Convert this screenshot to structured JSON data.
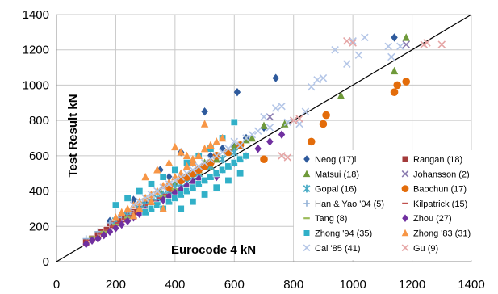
{
  "chart_data": {
    "type": "scatter",
    "title": "",
    "xlabel": "Eurocode 4   kN",
    "ylabel": "Test  Result  kN",
    "xlim": [
      0,
      1400
    ],
    "ylim": [
      0,
      1400
    ],
    "x_ticks": [
      "0",
      "200",
      "400",
      "600",
      "800",
      "1000",
      "1200",
      "1400"
    ],
    "y_ticks": [
      "0",
      "200",
      "400",
      "600",
      "800",
      "1000",
      "1200",
      "1400"
    ],
    "grid": true,
    "legend_position": "bottom-right",
    "reference_line": {
      "x": [
        0,
        1400
      ],
      "y": [
        0,
        1400
      ],
      "color": "#000000"
    },
    "series": [
      {
        "name": "Neog (17)i",
        "marker": "diamond",
        "color": "#2e5a9c",
        "points": [
          [
            500,
            850
          ],
          [
            610,
            960
          ],
          [
            740,
            1040
          ],
          [
            1140,
            1270
          ],
          [
            420,
            620
          ],
          [
            350,
            520
          ],
          [
            260,
            350
          ],
          [
            380,
            480
          ],
          [
            560,
            640
          ],
          [
            640,
            700
          ],
          [
            220,
            250
          ],
          [
            300,
            330
          ],
          [
            460,
            560
          ],
          [
            520,
            600
          ],
          [
            180,
            230
          ],
          [
            600,
            650
          ],
          [
            700,
            760
          ]
        ]
      },
      {
        "name": "Rangan (18)",
        "marker": "square",
        "color": "#a33a3a",
        "points": [
          [
            100,
            110
          ],
          [
            120,
            130
          ],
          [
            140,
            150
          ],
          [
            160,
            160
          ],
          [
            180,
            200
          ],
          [
            200,
            220
          ],
          [
            220,
            240
          ],
          [
            240,
            260
          ],
          [
            260,
            280
          ],
          [
            280,
            300
          ],
          [
            300,
            310
          ],
          [
            320,
            340
          ],
          [
            150,
            170
          ],
          [
            170,
            180
          ],
          [
            190,
            210
          ],
          [
            210,
            230
          ],
          [
            230,
            250
          ],
          [
            250,
            270
          ]
        ]
      },
      {
        "name": "Matsui (18)",
        "marker": "triangle",
        "color": "#6f9a3a",
        "points": [
          [
            700,
            770
          ],
          [
            770,
            780
          ],
          [
            960,
            940
          ],
          [
            1140,
            1080
          ],
          [
            1180,
            1270
          ],
          [
            540,
            580
          ],
          [
            580,
            620
          ],
          [
            600,
            650
          ],
          [
            620,
            660
          ],
          [
            660,
            700
          ],
          [
            400,
            450
          ],
          [
            450,
            500
          ],
          [
            500,
            560
          ],
          [
            350,
            400
          ],
          [
            300,
            360
          ],
          [
            640,
            690
          ],
          [
            520,
            540
          ],
          [
            480,
            520
          ]
        ]
      },
      {
        "name": "Johansson (2)",
        "marker": "x",
        "color": "#8a7bb0",
        "points": [
          [
            720,
            820
          ],
          [
            1180,
            1230
          ]
        ]
      },
      {
        "name": "Gopal (16)",
        "marker": "star",
        "color": "#4bacc6",
        "points": [
          [
            200,
            230
          ],
          [
            240,
            260
          ],
          [
            280,
            300
          ],
          [
            320,
            340
          ],
          [
            360,
            380
          ],
          [
            400,
            420
          ],
          [
            440,
            450
          ],
          [
            480,
            500
          ],
          [
            520,
            540
          ],
          [
            560,
            580
          ],
          [
            600,
            620
          ],
          [
            300,
            320
          ],
          [
            340,
            360
          ],
          [
            380,
            400
          ],
          [
            420,
            440
          ],
          [
            460,
            480
          ]
        ]
      },
      {
        "name": "Baochun (17)",
        "marker": "circle",
        "color": "#e36c0a",
        "points": [
          [
            700,
            580
          ],
          [
            860,
            680
          ],
          [
            900,
            780
          ],
          [
            910,
            830
          ],
          [
            1140,
            960
          ],
          [
            1150,
            1000
          ],
          [
            1180,
            1020
          ],
          [
            420,
            460
          ],
          [
            460,
            500
          ],
          [
            500,
            540
          ],
          [
            540,
            600
          ],
          [
            580,
            620
          ],
          [
            380,
            420
          ],
          [
            440,
            480
          ],
          [
            620,
            660
          ],
          [
            480,
            520
          ],
          [
            520,
            560
          ]
        ]
      },
      {
        "name": "Han & Yao '04 (5)",
        "marker": "plus",
        "color": "#95b3d7",
        "points": [
          [
            100,
            130
          ],
          [
            140,
            170
          ],
          [
            180,
            220
          ],
          [
            210,
            250
          ],
          [
            250,
            280
          ]
        ]
      },
      {
        "name": "Kilpatrick (15)",
        "marker": "dash",
        "color": "#c0504d",
        "points": [
          [
            110,
            120
          ],
          [
            130,
            140
          ],
          [
            150,
            160
          ],
          [
            170,
            180
          ],
          [
            190,
            200
          ],
          [
            210,
            220
          ],
          [
            230,
            240
          ],
          [
            250,
            260
          ],
          [
            270,
            280
          ],
          [
            290,
            300
          ],
          [
            310,
            320
          ],
          [
            330,
            340
          ],
          [
            350,
            360
          ],
          [
            370,
            380
          ],
          [
            390,
            400
          ]
        ]
      },
      {
        "name": "Tang (8)",
        "marker": "dash",
        "color": "#9bbb59",
        "points": [
          [
            120,
            140
          ],
          [
            160,
            170
          ],
          [
            200,
            210
          ],
          [
            240,
            250
          ],
          [
            280,
            290
          ],
          [
            320,
            330
          ],
          [
            360,
            370
          ],
          [
            400,
            410
          ]
        ]
      },
      {
        "name": "Zhou (27)",
        "marker": "diamond",
        "color": "#7030a0",
        "points": [
          [
            100,
            100
          ],
          [
            120,
            120
          ],
          [
            140,
            130
          ],
          [
            160,
            150
          ],
          [
            180,
            170
          ],
          [
            200,
            190
          ],
          [
            220,
            210
          ],
          [
            240,
            230
          ],
          [
            260,
            250
          ],
          [
            280,
            270
          ],
          [
            300,
            290
          ],
          [
            320,
            310
          ],
          [
            340,
            330
          ],
          [
            360,
            350
          ],
          [
            380,
            370
          ],
          [
            400,
            390
          ],
          [
            420,
            410
          ],
          [
            440,
            430
          ],
          [
            460,
            450
          ],
          [
            480,
            470
          ],
          [
            540,
            480
          ],
          [
            560,
            520
          ],
          [
            600,
            560
          ],
          [
            640,
            600
          ],
          [
            680,
            640
          ],
          [
            720,
            680
          ],
          [
            760,
            720
          ]
        ]
      },
      {
        "name": "Zhong '94 (35)",
        "marker": "square",
        "color": "#31b0c8",
        "points": [
          [
            300,
            280
          ],
          [
            320,
            300
          ],
          [
            340,
            320
          ],
          [
            360,
            300
          ],
          [
            380,
            340
          ],
          [
            400,
            360
          ],
          [
            420,
            380
          ],
          [
            440,
            400
          ],
          [
            460,
            420
          ],
          [
            480,
            440
          ],
          [
            500,
            460
          ],
          [
            520,
            480
          ],
          [
            540,
            500
          ],
          [
            560,
            520
          ],
          [
            580,
            540
          ],
          [
            600,
            560
          ],
          [
            620,
            580
          ],
          [
            640,
            600
          ],
          [
            600,
            790
          ],
          [
            560,
            700
          ],
          [
            520,
            640
          ],
          [
            480,
            600
          ],
          [
            440,
            560
          ],
          [
            400,
            520
          ],
          [
            360,
            480
          ],
          [
            320,
            440
          ],
          [
            280,
            400
          ],
          [
            240,
            360
          ],
          [
            200,
            320
          ],
          [
            420,
            300
          ],
          [
            460,
            340
          ],
          [
            500,
            380
          ],
          [
            540,
            420
          ],
          [
            580,
            460
          ],
          [
            620,
            500
          ]
        ]
      },
      {
        "name": "Zhong '83 (31)",
        "marker": "triangle",
        "color": "#f79646",
        "points": [
          [
            200,
            250
          ],
          [
            220,
            280
          ],
          [
            240,
            300
          ],
          [
            260,
            320
          ],
          [
            280,
            340
          ],
          [
            300,
            360
          ],
          [
            320,
            380
          ],
          [
            340,
            400
          ],
          [
            360,
            430
          ],
          [
            380,
            450
          ],
          [
            400,
            480
          ],
          [
            420,
            500
          ],
          [
            440,
            540
          ],
          [
            460,
            560
          ],
          [
            480,
            600
          ],
          [
            500,
            640
          ],
          [
            520,
            660
          ],
          [
            540,
            680
          ],
          [
            560,
            700
          ],
          [
            400,
            650
          ],
          [
            420,
            620
          ],
          [
            440,
            600
          ],
          [
            460,
            580
          ],
          [
            380,
            560
          ],
          [
            340,
            520
          ],
          [
            300,
            480
          ],
          [
            500,
            780
          ],
          [
            360,
            300
          ],
          [
            260,
            260
          ],
          [
            320,
            340
          ],
          [
            280,
            300
          ]
        ]
      },
      {
        "name": "Cai '85 (41)",
        "marker": "x",
        "color": "#b4c6e7",
        "points": [
          [
            700,
            820
          ],
          [
            740,
            870
          ],
          [
            760,
            880
          ],
          [
            800,
            800
          ],
          [
            820,
            780
          ],
          [
            840,
            850
          ],
          [
            860,
            990
          ],
          [
            880,
            1030
          ],
          [
            900,
            1040
          ],
          [
            940,
            1200
          ],
          [
            980,
            1120
          ],
          [
            1000,
            1250
          ],
          [
            1020,
            1170
          ],
          [
            1040,
            1270
          ],
          [
            1120,
            1220
          ],
          [
            1130,
            1160
          ],
          [
            1160,
            1220
          ],
          [
            600,
            680
          ],
          [
            640,
            700
          ],
          [
            680,
            740
          ],
          [
            720,
            760
          ],
          [
            780,
            790
          ],
          [
            620,
            660
          ],
          [
            660,
            720
          ],
          [
            560,
            620
          ],
          [
            580,
            640
          ],
          [
            540,
            600
          ],
          [
            520,
            580
          ],
          [
            500,
            560
          ],
          [
            480,
            540
          ],
          [
            460,
            520
          ],
          [
            440,
            500
          ],
          [
            420,
            480
          ],
          [
            400,
            460
          ],
          [
            380,
            440
          ],
          [
            360,
            420
          ],
          [
            340,
            400
          ],
          [
            320,
            380
          ],
          [
            300,
            360
          ],
          [
            280,
            340
          ],
          [
            260,
            320
          ]
        ]
      },
      {
        "name": "Gu (9)",
        "marker": "x",
        "color": "#e6a5a5",
        "points": [
          [
            780,
            590
          ],
          [
            800,
            800
          ],
          [
            980,
            1250
          ],
          [
            1250,
            1240
          ],
          [
            1300,
            1230
          ],
          [
            1240,
            1230
          ],
          [
            1000,
            1240
          ],
          [
            820,
            810
          ],
          [
            760,
            600
          ]
        ]
      }
    ]
  }
}
